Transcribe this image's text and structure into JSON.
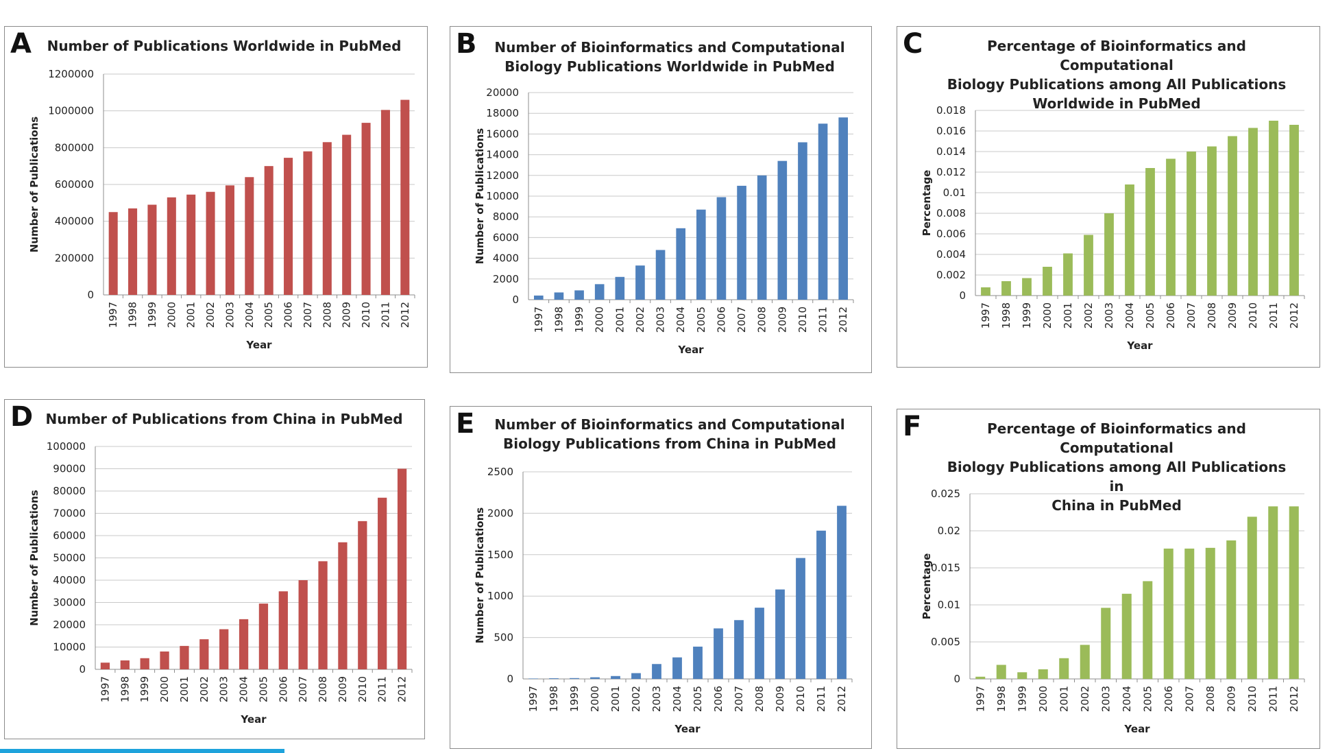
{
  "colors": {
    "red": "#c0504d",
    "blue": "#4f81bd",
    "green": "#9bbb59"
  },
  "chart_data": [
    {
      "id": "A",
      "letter": "A",
      "type": "bar",
      "title": "Number of Publications Worldwide in PubMed",
      "xlabel": "Year",
      "ylabel": "Number of Publications",
      "categories": [
        "1997",
        "1998",
        "1999",
        "2000",
        "2001",
        "2002",
        "2003",
        "2004",
        "2005",
        "2006",
        "2007",
        "2008",
        "2009",
        "2010",
        "2011",
        "2012"
      ],
      "values": [
        450000,
        470000,
        490000,
        530000,
        545000,
        560000,
        595000,
        640000,
        700000,
        745000,
        780000,
        830000,
        870000,
        935000,
        1005000,
        1060000
      ],
      "ylim": [
        0,
        1200000
      ],
      "yticks": [
        "0",
        "200000",
        "400000",
        "600000",
        "800000",
        "1000000",
        "1200000"
      ],
      "color": "#c0504d",
      "grid": true
    },
    {
      "id": "B",
      "letter": "B",
      "type": "bar",
      "title": "Number of Bioinformatics and Computational\nBiology Publications Worldwide in PubMed",
      "xlabel": "Year",
      "ylabel": "Number of Publications",
      "categories": [
        "1997",
        "1998",
        "1999",
        "2000",
        "2001",
        "2002",
        "2003",
        "2004",
        "2005",
        "2006",
        "2007",
        "2008",
        "2009",
        "2010",
        "2011",
        "2012"
      ],
      "values": [
        400,
        700,
        900,
        1500,
        2200,
        3300,
        4800,
        6900,
        8700,
        9900,
        11000,
        12000,
        13400,
        15200,
        17000,
        17600
      ],
      "ylim": [
        0,
        20000
      ],
      "yticks": [
        "0",
        "2000",
        "4000",
        "6000",
        "8000",
        "10000",
        "12000",
        "14000",
        "16000",
        "18000",
        "20000"
      ],
      "color": "#4f81bd",
      "grid": true
    },
    {
      "id": "C",
      "letter": "C",
      "type": "bar",
      "title": "Percentage of Bioinformatics and Computational\nBiology Publications among All Publications\nWorldwide in PubMed",
      "xlabel": "Year",
      "ylabel": "Percentage",
      "categories": [
        "1997",
        "1998",
        "1999",
        "2000",
        "2001",
        "2002",
        "2003",
        "2004",
        "2005",
        "2006",
        "2007",
        "2008",
        "2009",
        "2010",
        "2011",
        "2012"
      ],
      "values": [
        0.0008,
        0.0014,
        0.0017,
        0.0028,
        0.0041,
        0.0059,
        0.008,
        0.0108,
        0.0124,
        0.0133,
        0.014,
        0.0145,
        0.0155,
        0.0163,
        0.017,
        0.0166
      ],
      "ylim": [
        0,
        0.018
      ],
      "yticks": [
        "0",
        "0.002",
        "0.004",
        "0.006",
        "0.008",
        "0.01",
        "0.012",
        "0.014",
        "0.016",
        "0.018"
      ],
      "color": "#9bbb59",
      "grid": true
    },
    {
      "id": "D",
      "letter": "D",
      "type": "bar",
      "title": "Number of Publications from China in PubMed",
      "xlabel": "Year",
      "ylabel": "Number of Publications",
      "categories": [
        "1997",
        "1998",
        "1999",
        "2000",
        "2001",
        "2002",
        "2003",
        "2004",
        "2005",
        "2006",
        "2007",
        "2008",
        "2009",
        "2010",
        "2011",
        "2012"
      ],
      "values": [
        3000,
        4000,
        5000,
        8000,
        10500,
        13500,
        18000,
        22500,
        29500,
        35000,
        40000,
        48500,
        57000,
        66500,
        77000,
        90000
      ],
      "ylim": [
        0,
        100000
      ],
      "yticks": [
        "0",
        "10000",
        "20000",
        "30000",
        "40000",
        "50000",
        "60000",
        "70000",
        "80000",
        "90000",
        "100000"
      ],
      "color": "#c0504d",
      "grid": true
    },
    {
      "id": "E",
      "letter": "E",
      "type": "bar",
      "title": "Number of Bioinformatics and Computational\nBiology Publications from China in PubMed",
      "xlabel": "Year",
      "ylabel": "Number of Publications",
      "categories": [
        "1997",
        "1998",
        "1999",
        "2000",
        "2001",
        "2002",
        "2003",
        "2004",
        "2005",
        "2006",
        "2007",
        "2008",
        "2009",
        "2010",
        "2011",
        "2012"
      ],
      "values": [
        5,
        8,
        10,
        20,
        35,
        70,
        180,
        260,
        390,
        610,
        710,
        860,
        1080,
        1460,
        1790,
        2090
      ],
      "ylim": [
        0,
        2500
      ],
      "yticks": [
        "0",
        "500",
        "1000",
        "1500",
        "2000",
        "2500"
      ],
      "color": "#4f81bd",
      "grid": true
    },
    {
      "id": "F",
      "letter": "F",
      "type": "bar",
      "title": "Percentage of Bioinformatics and Computational\nBiology Publications among All Publications in\nChina in PubMed",
      "xlabel": "Year",
      "ylabel": "Percentage",
      "categories": [
        "1997",
        "1998",
        "1999",
        "2000",
        "2001",
        "2002",
        "2003",
        "2004",
        "2005",
        "2006",
        "2007",
        "2008",
        "2009",
        "2010",
        "2011",
        "2012"
      ],
      "values": [
        0.0003,
        0.0019,
        0.0009,
        0.0013,
        0.0028,
        0.0046,
        0.0096,
        0.0115,
        0.0132,
        0.0176,
        0.0176,
        0.0177,
        0.0187,
        0.0219,
        0.0233,
        0.0233
      ],
      "ylim": [
        0,
        0.025
      ],
      "yticks": [
        "0",
        "0.005",
        "0.01",
        "0.015",
        "0.02",
        "0.025"
      ],
      "color": "#9bbb59",
      "grid": true
    }
  ]
}
